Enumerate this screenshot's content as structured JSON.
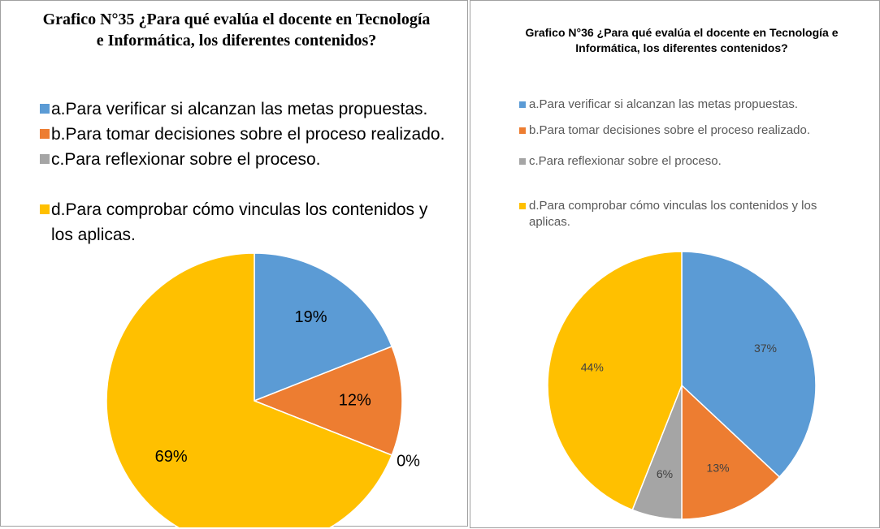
{
  "chart_data": [
    {
      "type": "pie",
      "title": "Grafico N°35 ¿Para qué evalúa el docente en Tecnología e Informática, los diferentes contenidos?",
      "categories": [
        "a.Para verificar si alcanzan las metas propuestas.",
        "b.Para tomar decisiones sobre el proceso realizado.",
        "c.Para reflexionar sobre el proceso.",
        "d.Para comprobar cómo vinculas los contenidos y los aplicas."
      ],
      "values": [
        19,
        12,
        0,
        69
      ],
      "value_labels": [
        "19%",
        "12%",
        "0%",
        "69%"
      ],
      "colors": [
        "#5b9bd5",
        "#ed7d31",
        "#a5a5a5",
        "#ffc000"
      ],
      "legend": "top"
    },
    {
      "type": "pie",
      "title": "Grafico N°36 ¿Para qué evalúa el docente en Tecnología e Informática, los diferentes contenidos?",
      "categories": [
        "a.Para verificar si alcanzan las metas propuestas.",
        "b.Para tomar decisiones sobre el proceso realizado.",
        "c.Para reflexionar sobre el proceso.",
        "d.Para comprobar cómo vinculas los contenidos y los aplicas."
      ],
      "values": [
        37,
        13,
        6,
        44
      ],
      "value_labels": [
        "37%",
        "13%",
        "6%",
        "44%"
      ],
      "colors": [
        "#5b9bd5",
        "#ed7d31",
        "#a5a5a5",
        "#ffc000"
      ],
      "legend": "top"
    }
  ]
}
